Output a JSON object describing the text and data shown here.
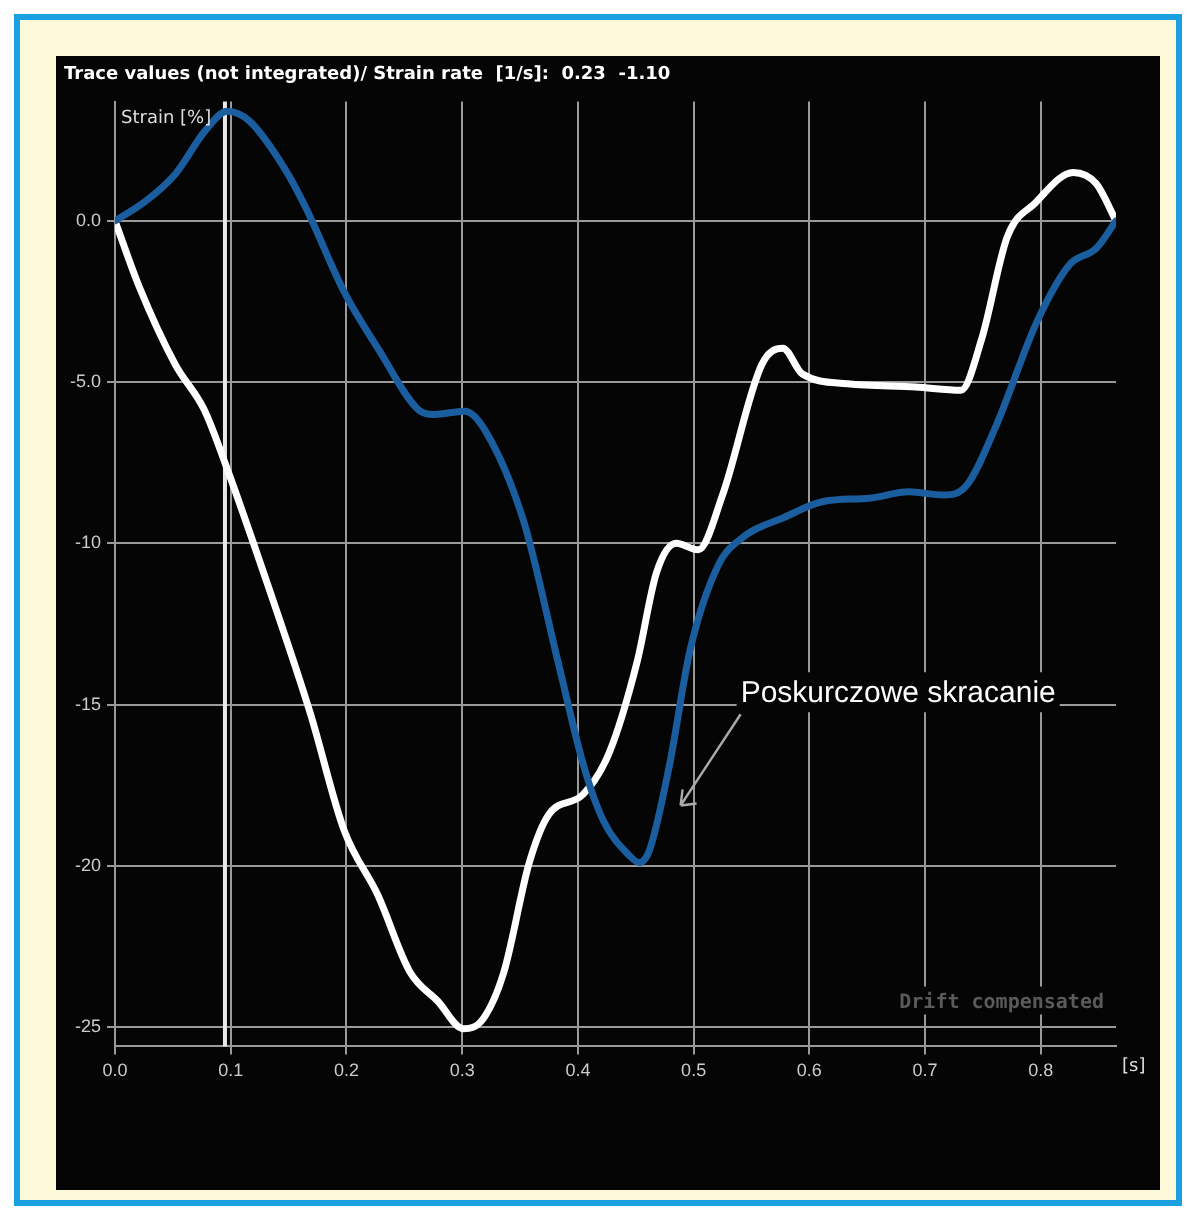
{
  "chart_data": {
    "type": "line",
    "title": "Trace values (not integrated)/ Strain rate  [1/s]:  0.23  -1.10",
    "ylabel": "Strain [%]",
    "xlabel": "[s]",
    "xlim": [
      0,
      0.865
    ],
    "xticks": [
      {
        "value": 0,
        "label": "0.0"
      },
      0.1,
      0.2,
      0.3,
      0.4,
      0.5,
      0.6,
      0.7,
      0.8
    ],
    "ylim": [
      -25.6,
      3.7
    ],
    "yticks": [
      {
        "value": 0,
        "label": "0.0"
      },
      {
        "value": -5,
        "label": "-5.0"
      },
      -10,
      -15,
      -20,
      -25
    ],
    "grid": true,
    "legend": false,
    "marker": "none",
    "line_style": "solid",
    "ref_lines": [
      {
        "axis": "x",
        "value": 0.095,
        "color": "#e8e8e8"
      }
    ],
    "annotations": [
      "Poskurczowe skracanie",
      "Drift compensated"
    ],
    "series": [
      {
        "color": "#1a5ea0",
        "x": [
          0,
          0.026,
          0.052,
          0.078,
          0.097,
          0.116,
          0.147,
          0.165,
          0.198,
          0.228,
          0.262,
          0.276,
          0.302,
          0.319,
          0.353,
          0.383,
          0.405,
          0.422,
          0.445,
          0.453,
          0.462,
          0.479,
          0.497,
          0.521,
          0.543,
          0.578,
          0.612,
          0.652,
          0.686,
          0.716,
          0.736,
          0.762,
          0.797,
          0.825,
          0.848,
          0.865
        ],
        "values": [
          0,
          0.6,
          1.45,
          2.8,
          3.4,
          3.1,
          1.6,
          0.4,
          -2.2,
          -4.0,
          -5.85,
          -6.0,
          -5.9,
          -6.45,
          -9.3,
          -13.7,
          -16.9,
          -18.6,
          -19.7,
          -19.9,
          -19.5,
          -16.9,
          -13.3,
          -10.7,
          -9.8,
          -9.2,
          -8.7,
          -8.6,
          -8.4,
          -8.5,
          -8.2,
          -6.3,
          -3.1,
          -1.35,
          -0.85,
          0
        ]
      },
      {
        "color": "#ffffff",
        "x": [
          0,
          0.021,
          0.052,
          0.077,
          0.095,
          0.134,
          0.169,
          0.198,
          0.227,
          0.255,
          0.279,
          0.301,
          0.318,
          0.336,
          0.358,
          0.375,
          0.404,
          0.427,
          0.451,
          0.468,
          0.485,
          0.504,
          0.525,
          0.559,
          0.577,
          0.594,
          0.633,
          0.692,
          0.731,
          0.749,
          0.771,
          0.795,
          0.828,
          0.848,
          0.865
        ],
        "values": [
          0,
          -2.05,
          -4.45,
          -5.85,
          -7.5,
          -11.5,
          -15.3,
          -18.9,
          -20.9,
          -23.3,
          -24.2,
          -25.05,
          -24.75,
          -23.3,
          -19.9,
          -18.4,
          -17.8,
          -16.5,
          -13.7,
          -10.9,
          -10.0,
          -10.2,
          -8.5,
          -4.45,
          -3.95,
          -4.75,
          -5.05,
          -5.15,
          -5.25,
          -3.65,
          -0.5,
          0.55,
          1.5,
          1.15,
          0
        ]
      }
    ]
  }
}
